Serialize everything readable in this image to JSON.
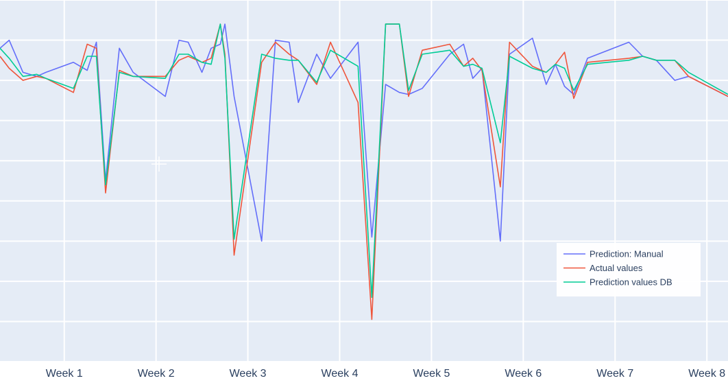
{
  "chart_data": {
    "type": "line",
    "title": "",
    "xlabel": "",
    "ylabel": "",
    "x_tick_labels": [
      "Week 1",
      "Week 2",
      "Week 3",
      "Week 4",
      "Week 5",
      "Week 6",
      "Week 7",
      "Week 8"
    ],
    "x_range": [
      0.3,
      8.23
    ],
    "y_range": [
      -1.0,
      8.0
    ],
    "grid": true,
    "legend_position": "bottom-right",
    "x": [
      0.3,
      0.4,
      0.55,
      0.7,
      0.8,
      1.1,
      1.25,
      1.35,
      1.45,
      1.6,
      1.75,
      2.1,
      2.25,
      2.35,
      2.5,
      2.6,
      2.7,
      2.75,
      2.85,
      3.15,
      3.3,
      3.45,
      3.55,
      3.75,
      3.9,
      4.2,
      4.35,
      4.5,
      4.65,
      4.75,
      4.9,
      5.2,
      5.35,
      5.45,
      5.55,
      5.75,
      5.85,
      6.1,
      6.25,
      6.35,
      6.45,
      6.55,
      6.7,
      7.15,
      7.3,
      7.45,
      7.65,
      7.8,
      8.23
    ],
    "series": [
      {
        "name": "Prediction: Manual",
        "color": "#636efa",
        "values": [
          6.8,
          7.0,
          6.2,
          6.1,
          6.2,
          6.45,
          6.25,
          6.95,
          3.5,
          6.8,
          6.2,
          5.6,
          7.0,
          6.95,
          6.2,
          6.8,
          6.9,
          7.4,
          5.6,
          2.0,
          7.0,
          6.95,
          5.45,
          6.65,
          6.05,
          6.95,
          2.1,
          5.9,
          5.7,
          5.65,
          5.8,
          6.65,
          6.9,
          6.05,
          6.3,
          2.0,
          6.65,
          7.05,
          5.9,
          6.4,
          5.85,
          5.65,
          6.55,
          6.95,
          6.6,
          6.5,
          6.0,
          6.1,
          5.6
        ]
      },
      {
        "name": "Actual values",
        "color": "#ef553b",
        "values": [
          6.6,
          6.3,
          6.0,
          6.1,
          6.05,
          5.7,
          6.9,
          6.8,
          3.2,
          6.25,
          6.1,
          6.1,
          6.5,
          6.6,
          6.45,
          6.55,
          7.4,
          6.65,
          1.65,
          6.45,
          6.95,
          6.65,
          6.5,
          5.9,
          6.95,
          5.45,
          0.05,
          7.4,
          7.4,
          5.6,
          6.75,
          6.9,
          6.35,
          6.55,
          6.25,
          3.35,
          6.95,
          6.35,
          6.2,
          6.4,
          6.7,
          5.55,
          6.45,
          6.55,
          6.6,
          6.5,
          6.5,
          6.1,
          5.6
        ]
      },
      {
        "name": "Prediction values DB",
        "color": "#00cc96",
        "values": [
          6.8,
          6.55,
          6.1,
          6.15,
          6.05,
          5.8,
          6.6,
          6.6,
          3.4,
          6.2,
          6.1,
          6.05,
          6.65,
          6.65,
          6.45,
          6.4,
          7.4,
          6.55,
          2.05,
          6.65,
          6.55,
          6.5,
          6.5,
          5.95,
          6.75,
          6.35,
          0.6,
          7.4,
          7.4,
          5.75,
          6.65,
          6.75,
          6.35,
          6.4,
          6.3,
          4.45,
          6.6,
          6.3,
          6.2,
          6.4,
          6.3,
          5.75,
          6.4,
          6.5,
          6.6,
          6.5,
          6.5,
          6.2,
          5.65
        ]
      }
    ]
  }
}
